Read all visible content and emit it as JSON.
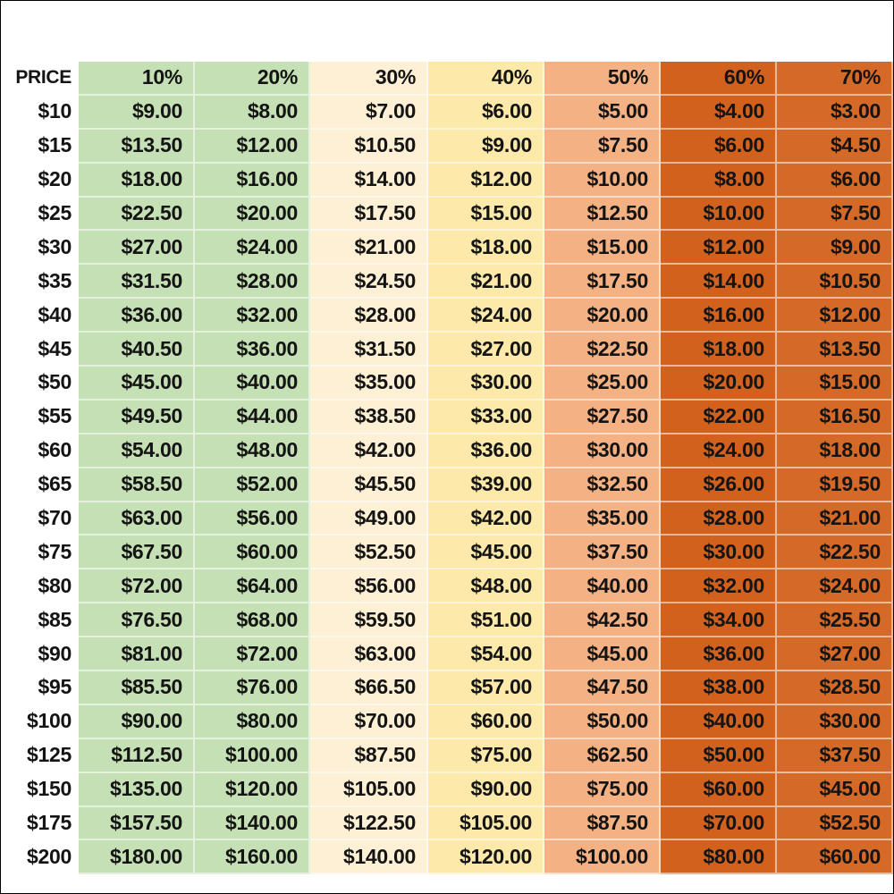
{
  "table": {
    "header_label": "PRICE",
    "discounts": [
      "10%",
      "20%",
      "30%",
      "40%",
      "50%",
      "60%",
      "70%"
    ],
    "column_colors": [
      "#c5e0b4",
      "#c5e0b4",
      "#fdf0d5",
      "#fde9a9",
      "#f4b183",
      "#d2611e",
      "#d56a28"
    ],
    "rows": [
      {
        "price": "$10",
        "values": [
          "$9.00",
          "$8.00",
          "$7.00",
          "$6.00",
          "$5.00",
          "$4.00",
          "$3.00"
        ]
      },
      {
        "price": "$15",
        "values": [
          "$13.50",
          "$12.00",
          "$10.50",
          "$9.00",
          "$7.50",
          "$6.00",
          "$4.50"
        ]
      },
      {
        "price": "$20",
        "values": [
          "$18.00",
          "$16.00",
          "$14.00",
          "$12.00",
          "$10.00",
          "$8.00",
          "$6.00"
        ]
      },
      {
        "price": "$25",
        "values": [
          "$22.50",
          "$20.00",
          "$17.50",
          "$15.00",
          "$12.50",
          "$10.00",
          "$7.50"
        ]
      },
      {
        "price": "$30",
        "values": [
          "$27.00",
          "$24.00",
          "$21.00",
          "$18.00",
          "$15.00",
          "$12.00",
          "$9.00"
        ]
      },
      {
        "price": "$35",
        "values": [
          "$31.50",
          "$28.00",
          "$24.50",
          "$21.00",
          "$17.50",
          "$14.00",
          "$10.50"
        ]
      },
      {
        "price": "$40",
        "values": [
          "$36.00",
          "$32.00",
          "$28.00",
          "$24.00",
          "$20.00",
          "$16.00",
          "$12.00"
        ]
      },
      {
        "price": "$45",
        "values": [
          "$40.50",
          "$36.00",
          "$31.50",
          "$27.00",
          "$22.50",
          "$18.00",
          "$13.50"
        ]
      },
      {
        "price": "$50",
        "values": [
          "$45.00",
          "$40.00",
          "$35.00",
          "$30.00",
          "$25.00",
          "$20.00",
          "$15.00"
        ]
      },
      {
        "price": "$55",
        "values": [
          "$49.50",
          "$44.00",
          "$38.50",
          "$33.00",
          "$27.50",
          "$22.00",
          "$16.50"
        ]
      },
      {
        "price": "$60",
        "values": [
          "$54.00",
          "$48.00",
          "$42.00",
          "$36.00",
          "$30.00",
          "$24.00",
          "$18.00"
        ]
      },
      {
        "price": "$65",
        "values": [
          "$58.50",
          "$52.00",
          "$45.50",
          "$39.00",
          "$32.50",
          "$26.00",
          "$19.50"
        ]
      },
      {
        "price": "$70",
        "values": [
          "$63.00",
          "$56.00",
          "$49.00",
          "$42.00",
          "$35.00",
          "$28.00",
          "$21.00"
        ]
      },
      {
        "price": "$75",
        "values": [
          "$67.50",
          "$60.00",
          "$52.50",
          "$45.00",
          "$37.50",
          "$30.00",
          "$22.50"
        ]
      },
      {
        "price": "$80",
        "values": [
          "$72.00",
          "$64.00",
          "$56.00",
          "$48.00",
          "$40.00",
          "$32.00",
          "$24.00"
        ]
      },
      {
        "price": "$85",
        "values": [
          "$76.50",
          "$68.00",
          "$59.50",
          "$51.00",
          "$42.50",
          "$34.00",
          "$25.50"
        ]
      },
      {
        "price": "$90",
        "values": [
          "$81.00",
          "$72.00",
          "$63.00",
          "$54.00",
          "$45.00",
          "$36.00",
          "$27.00"
        ]
      },
      {
        "price": "$95",
        "values": [
          "$85.50",
          "$76.00",
          "$66.50",
          "$57.00",
          "$47.50",
          "$38.00",
          "$28.50"
        ]
      },
      {
        "price": "$100",
        "values": [
          "$90.00",
          "$80.00",
          "$70.00",
          "$60.00",
          "$50.00",
          "$40.00",
          "$30.00"
        ]
      },
      {
        "price": "$125",
        "values": [
          "$112.50",
          "$100.00",
          "$87.50",
          "$75.00",
          "$62.50",
          "$50.00",
          "$37.50"
        ]
      },
      {
        "price": "$150",
        "values": [
          "$135.00",
          "$120.00",
          "$105.00",
          "$90.00",
          "$75.00",
          "$60.00",
          "$45.00"
        ]
      },
      {
        "price": "$175",
        "values": [
          "$157.50",
          "$140.00",
          "$122.50",
          "$105.00",
          "$87.50",
          "$70.00",
          "$52.50"
        ]
      },
      {
        "price": "$200",
        "values": [
          "$180.00",
          "$160.00",
          "$140.00",
          "$120.00",
          "$100.00",
          "$80.00",
          "$60.00"
        ]
      }
    ]
  }
}
